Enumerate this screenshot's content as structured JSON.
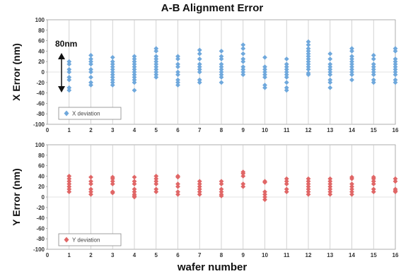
{
  "title": "A-B Alignment Error",
  "xlabel": "wafer number",
  "annotation": "80nm",
  "colors": {
    "x": "#6fa8dc",
    "y": "#e06666",
    "grid": "#c8c8c8",
    "axis": "#999999"
  },
  "chart_data": [
    {
      "type": "scatter",
      "ylabel": "X Error (nm)",
      "xlim": [
        0,
        16
      ],
      "ylim": [
        -100,
        100
      ],
      "xticks": [
        "0",
        "1",
        "2",
        "3",
        "4",
        "5",
        "6",
        "7",
        "8",
        "9",
        "10",
        "11",
        "12",
        "13",
        "14",
        "15",
        "16"
      ],
      "yticks": [
        "100",
        "80",
        "60",
        "40",
        "20",
        "0",
        "-20",
        "-40",
        "-60",
        "-80",
        "-100"
      ],
      "grid": "vertical",
      "legend_position": "bottom-left",
      "series": [
        {
          "name": "X deviation",
          "points": [
            [
              1,
              20
            ],
            [
              1,
              15
            ],
            [
              1,
              5
            ],
            [
              1,
              0
            ],
            [
              1,
              -10
            ],
            [
              1,
              -15
            ],
            [
              1,
              -30
            ],
            [
              1,
              -35
            ],
            [
              2,
              32
            ],
            [
              2,
              25
            ],
            [
              2,
              20
            ],
            [
              2,
              15
            ],
            [
              2,
              5
            ],
            [
              2,
              0
            ],
            [
              2,
              -10
            ],
            [
              2,
              -20
            ],
            [
              2,
              -25
            ],
            [
              3,
              28
            ],
            [
              3,
              20
            ],
            [
              3,
              15
            ],
            [
              3,
              10
            ],
            [
              3,
              5
            ],
            [
              3,
              0
            ],
            [
              3,
              -5
            ],
            [
              3,
              -10
            ],
            [
              3,
              -15
            ],
            [
              3,
              -20
            ],
            [
              3,
              -25
            ],
            [
              4,
              30
            ],
            [
              4,
              25
            ],
            [
              4,
              20
            ],
            [
              4,
              15
            ],
            [
              4,
              10
            ],
            [
              4,
              5
            ],
            [
              4,
              0
            ],
            [
              4,
              -5
            ],
            [
              4,
              -10
            ],
            [
              4,
              -15
            ],
            [
              4,
              -20
            ],
            [
              4,
              -35
            ],
            [
              5,
              45
            ],
            [
              5,
              40
            ],
            [
              5,
              30
            ],
            [
              5,
              25
            ],
            [
              5,
              20
            ],
            [
              5,
              15
            ],
            [
              5,
              10
            ],
            [
              5,
              5
            ],
            [
              5,
              0
            ],
            [
              5,
              -5
            ],
            [
              5,
              -10
            ],
            [
              6,
              30
            ],
            [
              6,
              25
            ],
            [
              6,
              15
            ],
            [
              6,
              10
            ],
            [
              6,
              0
            ],
            [
              6,
              -5
            ],
            [
              6,
              -15
            ],
            [
              6,
              -20
            ],
            [
              6,
              -25
            ],
            [
              7,
              42
            ],
            [
              7,
              35
            ],
            [
              7,
              25
            ],
            [
              7,
              15
            ],
            [
              7,
              10
            ],
            [
              7,
              5
            ],
            [
              7,
              0
            ],
            [
              7,
              -15
            ],
            [
              7,
              -20
            ],
            [
              8,
              40
            ],
            [
              8,
              30
            ],
            [
              8,
              25
            ],
            [
              8,
              15
            ],
            [
              8,
              10
            ],
            [
              8,
              5
            ],
            [
              8,
              0
            ],
            [
              8,
              -5
            ],
            [
              8,
              -10
            ],
            [
              8,
              -20
            ],
            [
              9,
              52
            ],
            [
              9,
              45
            ],
            [
              9,
              35
            ],
            [
              9,
              25
            ],
            [
              9,
              20
            ],
            [
              9,
              10
            ],
            [
              9,
              5
            ],
            [
              9,
              0
            ],
            [
              9,
              -5
            ],
            [
              10,
              28
            ],
            [
              10,
              10
            ],
            [
              10,
              5
            ],
            [
              10,
              0
            ],
            [
              10,
              -5
            ],
            [
              10,
              -10
            ],
            [
              10,
              -25
            ],
            [
              10,
              -30
            ],
            [
              11,
              25
            ],
            [
              11,
              15
            ],
            [
              11,
              10
            ],
            [
              11,
              5
            ],
            [
              11,
              0
            ],
            [
              11,
              -5
            ],
            [
              11,
              -10
            ],
            [
              11,
              -20
            ],
            [
              11,
              -30
            ],
            [
              11,
              -35
            ],
            [
              12,
              58
            ],
            [
              12,
              52
            ],
            [
              12,
              45
            ],
            [
              12,
              40
            ],
            [
              12,
              35
            ],
            [
              12,
              30
            ],
            [
              12,
              25
            ],
            [
              12,
              20
            ],
            [
              12,
              15
            ],
            [
              12,
              10
            ],
            [
              12,
              5
            ],
            [
              12,
              -2
            ],
            [
              12,
              -5
            ],
            [
              13,
              35
            ],
            [
              13,
              25
            ],
            [
              13,
              15
            ],
            [
              13,
              10
            ],
            [
              13,
              5
            ],
            [
              13,
              0
            ],
            [
              13,
              -5
            ],
            [
              13,
              -15
            ],
            [
              13,
              -20
            ],
            [
              13,
              -30
            ],
            [
              14,
              45
            ],
            [
              14,
              40
            ],
            [
              14,
              30
            ],
            [
              14,
              25
            ],
            [
              14,
              20
            ],
            [
              14,
              15
            ],
            [
              14,
              10
            ],
            [
              14,
              5
            ],
            [
              14,
              0
            ],
            [
              14,
              -5
            ],
            [
              14,
              -15
            ],
            [
              15,
              32
            ],
            [
              15,
              25
            ],
            [
              15,
              15
            ],
            [
              15,
              10
            ],
            [
              15,
              5
            ],
            [
              15,
              0
            ],
            [
              15,
              -5
            ],
            [
              15,
              -15
            ],
            [
              15,
              -20
            ],
            [
              16,
              45
            ],
            [
              16,
              40
            ],
            [
              16,
              25
            ],
            [
              16,
              20
            ],
            [
              16,
              15
            ],
            [
              16,
              10
            ],
            [
              16,
              5
            ],
            [
              16,
              0
            ],
            [
              16,
              -5
            ],
            [
              16,
              -15
            ],
            [
              16,
              -20
            ]
          ]
        }
      ]
    },
    {
      "type": "scatter",
      "ylabel": "Y Error (nm)",
      "xlim": [
        0,
        16
      ],
      "ylim": [
        -100,
        100
      ],
      "xticks": [
        "0",
        "1",
        "2",
        "3",
        "4",
        "5",
        "6",
        "7",
        "8",
        "9",
        "10",
        "11",
        "12",
        "13",
        "14",
        "15",
        "16"
      ],
      "yticks": [
        "100",
        "80",
        "60",
        "40",
        "20",
        "0",
        "-20",
        "-40",
        "-60",
        "-80",
        "-100"
      ],
      "grid": "vertical",
      "legend_position": "bottom-left",
      "series": [
        {
          "name": "Y deviation",
          "points": [
            [
              1,
              40
            ],
            [
              1,
              35
            ],
            [
              1,
              30
            ],
            [
              1,
              25
            ],
            [
              1,
              20
            ],
            [
              1,
              15
            ],
            [
              1,
              10
            ],
            [
              2,
              38
            ],
            [
              2,
              30
            ],
            [
              2,
              25
            ],
            [
              2,
              15
            ],
            [
              2,
              10
            ],
            [
              2,
              5
            ],
            [
              3,
              38
            ],
            [
              3,
              35
            ],
            [
              3,
              30
            ],
            [
              3,
              25
            ],
            [
              3,
              10
            ],
            [
              3,
              8
            ],
            [
              4,
              38
            ],
            [
              4,
              30
            ],
            [
              4,
              25
            ],
            [
              4,
              15
            ],
            [
              4,
              10
            ],
            [
              4,
              5
            ],
            [
              4,
              2
            ],
            [
              4,
              0
            ],
            [
              5,
              40
            ],
            [
              5,
              35
            ],
            [
              5,
              30
            ],
            [
              5,
              25
            ],
            [
              5,
              15
            ],
            [
              5,
              10
            ],
            [
              6,
              40
            ],
            [
              6,
              38
            ],
            [
              6,
              25
            ],
            [
              6,
              20
            ],
            [
              6,
              10
            ],
            [
              6,
              5
            ],
            [
              7,
              30
            ],
            [
              7,
              25
            ],
            [
              7,
              20
            ],
            [
              7,
              15
            ],
            [
              7,
              10
            ],
            [
              7,
              5
            ],
            [
              8,
              30
            ],
            [
              8,
              25
            ],
            [
              8,
              15
            ],
            [
              8,
              10
            ],
            [
              8,
              5
            ],
            [
              8,
              2
            ],
            [
              9,
              48
            ],
            [
              9,
              45
            ],
            [
              9,
              40
            ],
            [
              9,
              25
            ],
            [
              9,
              20
            ],
            [
              10,
              30
            ],
            [
              10,
              28
            ],
            [
              10,
              10
            ],
            [
              10,
              5
            ],
            [
              10,
              0
            ],
            [
              10,
              -5
            ],
            [
              11,
              35
            ],
            [
              11,
              30
            ],
            [
              11,
              25
            ],
            [
              11,
              15
            ],
            [
              11,
              10
            ],
            [
              12,
              35
            ],
            [
              12,
              30
            ],
            [
              12,
              25
            ],
            [
              12,
              20
            ],
            [
              12,
              15
            ],
            [
              12,
              10
            ],
            [
              12,
              5
            ],
            [
              13,
              35
            ],
            [
              13,
              30
            ],
            [
              13,
              25
            ],
            [
              13,
              20
            ],
            [
              13,
              15
            ],
            [
              13,
              10
            ],
            [
              13,
              5
            ],
            [
              14,
              38
            ],
            [
              14,
              35
            ],
            [
              14,
              25
            ],
            [
              14,
              20
            ],
            [
              14,
              15
            ],
            [
              14,
              10
            ],
            [
              14,
              5
            ],
            [
              15,
              38
            ],
            [
              15,
              35
            ],
            [
              15,
              30
            ],
            [
              15,
              25
            ],
            [
              15,
              15
            ],
            [
              15,
              10
            ],
            [
              16,
              35
            ],
            [
              16,
              30
            ],
            [
              16,
              15
            ],
            [
              16,
              12
            ],
            [
              16,
              10
            ]
          ]
        }
      ]
    }
  ]
}
